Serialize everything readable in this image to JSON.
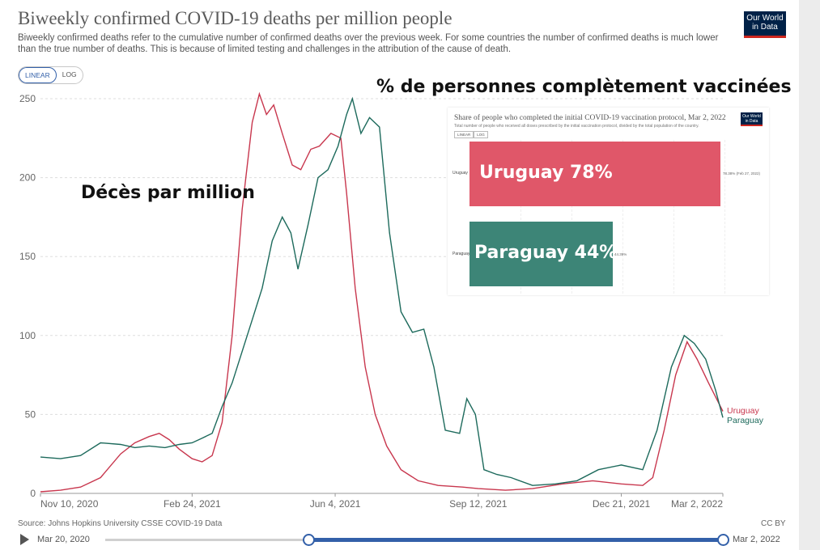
{
  "header": {
    "title": "Biweekly confirmed COVID-19 deaths per million people",
    "subtitle": "Biweekly confirmed deaths refer to the cumulative number of confirmed deaths over the previous week. For some countries the number of confirmed deaths is much lower than the true number of deaths. This is because of limited testing and challenges in the attribution of the cause of death.",
    "logo": "Our World in Data"
  },
  "scale_toggle": {
    "linear": "LINEAR",
    "log": "LOG",
    "selected": "LINEAR"
  },
  "annotations": {
    "vaccinated": "% de personnes complètement vaccinées",
    "deaths": "Décès par million"
  },
  "footer": {
    "source": "Source: Johns Hopkins University CSSE COVID-19 Data",
    "license": "CC BY"
  },
  "timeline": {
    "start": "Mar 20, 2020",
    "end": "Mar 2, 2022"
  },
  "colors": {
    "uruguay": "#c8374e",
    "paraguay": "#1d6a5c",
    "accent": "#3360a9"
  },
  "chart_data": [
    {
      "type": "line",
      "title": "Biweekly confirmed COVID-19 deaths per million people",
      "x_tick_labels": [
        "Nov 10, 2020",
        "Feb 24, 2021",
        "Jun 4, 2021",
        "Sep 12, 2021",
        "Dec 21, 2021",
        "Mar 2, 2022"
      ],
      "y_ticks": [
        0,
        50,
        100,
        150,
        200,
        250
      ],
      "ylim": [
        0,
        250
      ],
      "x_range": [
        "2020-11-10",
        "2022-03-02"
      ],
      "grid": true,
      "legend": "end-labels",
      "series": [
        {
          "name": "Uruguay",
          "color": "#c8374e",
          "points": [
            [
              "2020-11-10",
              1
            ],
            [
              "2020-11-24",
              2
            ],
            [
              "2020-12-08",
              4
            ],
            [
              "2020-12-22",
              10
            ],
            [
              "2021-01-05",
              25
            ],
            [
              "2021-01-15",
              32
            ],
            [
              "2021-01-25",
              36
            ],
            [
              "2021-02-01",
              38
            ],
            [
              "2021-02-08",
              34
            ],
            [
              "2021-02-15",
              28
            ],
            [
              "2021-02-24",
              22
            ],
            [
              "2021-03-03",
              20
            ],
            [
              "2021-03-10",
              24
            ],
            [
              "2021-03-17",
              45
            ],
            [
              "2021-03-24",
              100
            ],
            [
              "2021-03-31",
              180
            ],
            [
              "2021-04-07",
              235
            ],
            [
              "2021-04-12",
              253
            ],
            [
              "2021-04-17",
              240
            ],
            [
              "2021-04-22",
              246
            ],
            [
              "2021-04-28",
              228
            ],
            [
              "2021-05-05",
              208
            ],
            [
              "2021-05-11",
              205
            ],
            [
              "2021-05-18",
              218
            ],
            [
              "2021-05-24",
              220
            ],
            [
              "2021-06-01",
              228
            ],
            [
              "2021-06-08",
              225
            ],
            [
              "2021-06-12",
              190
            ],
            [
              "2021-06-18",
              130
            ],
            [
              "2021-06-25",
              80
            ],
            [
              "2021-07-02",
              50
            ],
            [
              "2021-07-10",
              30
            ],
            [
              "2021-07-20",
              15
            ],
            [
              "2021-08-01",
              8
            ],
            [
              "2021-08-15",
              5
            ],
            [
              "2021-09-01",
              4
            ],
            [
              "2021-09-12",
              3
            ],
            [
              "2021-10-01",
              2
            ],
            [
              "2021-10-20",
              3
            ],
            [
              "2021-11-10",
              6
            ],
            [
              "2021-12-01",
              8
            ],
            [
              "2021-12-21",
              6
            ],
            [
              "2022-01-05",
              5
            ],
            [
              "2022-01-12",
              10
            ],
            [
              "2022-01-20",
              40
            ],
            [
              "2022-01-28",
              75
            ],
            [
              "2022-02-05",
              96
            ],
            [
              "2022-02-12",
              85
            ],
            [
              "2022-02-20",
              70
            ],
            [
              "2022-03-02",
              52
            ]
          ]
        },
        {
          "name": "Paraguay",
          "color": "#1d6a5c",
          "points": [
            [
              "2020-11-10",
              23
            ],
            [
              "2020-11-24",
              22
            ],
            [
              "2020-12-08",
              24
            ],
            [
              "2020-12-22",
              32
            ],
            [
              "2021-01-05",
              31
            ],
            [
              "2021-01-15",
              29
            ],
            [
              "2021-01-25",
              30
            ],
            [
              "2021-02-05",
              29
            ],
            [
              "2021-02-15",
              31
            ],
            [
              "2021-02-24",
              32
            ],
            [
              "2021-03-03",
              35
            ],
            [
              "2021-03-10",
              38
            ],
            [
              "2021-03-17",
              55
            ],
            [
              "2021-03-24",
              70
            ],
            [
              "2021-03-31",
              90
            ],
            [
              "2021-04-07",
              110
            ],
            [
              "2021-04-14",
              130
            ],
            [
              "2021-04-21",
              160
            ],
            [
              "2021-04-28",
              175
            ],
            [
              "2021-05-04",
              165
            ],
            [
              "2021-05-09",
              142
            ],
            [
              "2021-05-16",
              170
            ],
            [
              "2021-05-23",
              200
            ],
            [
              "2021-05-30",
              205
            ],
            [
              "2021-06-06",
              220
            ],
            [
              "2021-06-12",
              240
            ],
            [
              "2021-06-16",
              250
            ],
            [
              "2021-06-22",
              228
            ],
            [
              "2021-06-28",
              238
            ],
            [
              "2021-07-05",
              232
            ],
            [
              "2021-07-12",
              165
            ],
            [
              "2021-07-20",
              115
            ],
            [
              "2021-07-28",
              102
            ],
            [
              "2021-08-05",
              104
            ],
            [
              "2021-08-12",
              80
            ],
            [
              "2021-08-20",
              40
            ],
            [
              "2021-08-30",
              38
            ],
            [
              "2021-09-04",
              60
            ],
            [
              "2021-09-10",
              50
            ],
            [
              "2021-09-16",
              15
            ],
            [
              "2021-09-25",
              12
            ],
            [
              "2021-10-05",
              10
            ],
            [
              "2021-10-20",
              5
            ],
            [
              "2021-11-05",
              6
            ],
            [
              "2021-11-20",
              8
            ],
            [
              "2021-12-05",
              15
            ],
            [
              "2021-12-21",
              18
            ],
            [
              "2022-01-05",
              15
            ],
            [
              "2022-01-15",
              40
            ],
            [
              "2022-01-25",
              80
            ],
            [
              "2022-02-03",
              100
            ],
            [
              "2022-02-10",
              95
            ],
            [
              "2022-02-18",
              85
            ],
            [
              "2022-02-25",
              65
            ],
            [
              "2022-03-02",
              48
            ]
          ]
        }
      ]
    },
    {
      "type": "bar",
      "title": "Share of people who completed the initial COVID-19 vaccination protocol, Mar 2, 2022",
      "subtitle": "Total number of people who received all doses prescribed by the initial vaccination protocol, divided by the total population of the country.",
      "toggle": [
        "LINEAR",
        "LOG"
      ],
      "categories": [
        "Uruguay",
        "Paraguay"
      ],
      "values": [
        78,
        44
      ],
      "bar_text": [
        "Uruguay 78%",
        "Paraguay 44%"
      ],
      "value_labels": [
        "78.38% (Feb 27, 2022)",
        "44.39%"
      ],
      "colors": [
        "#e05769",
        "#3d8577"
      ]
    }
  ]
}
